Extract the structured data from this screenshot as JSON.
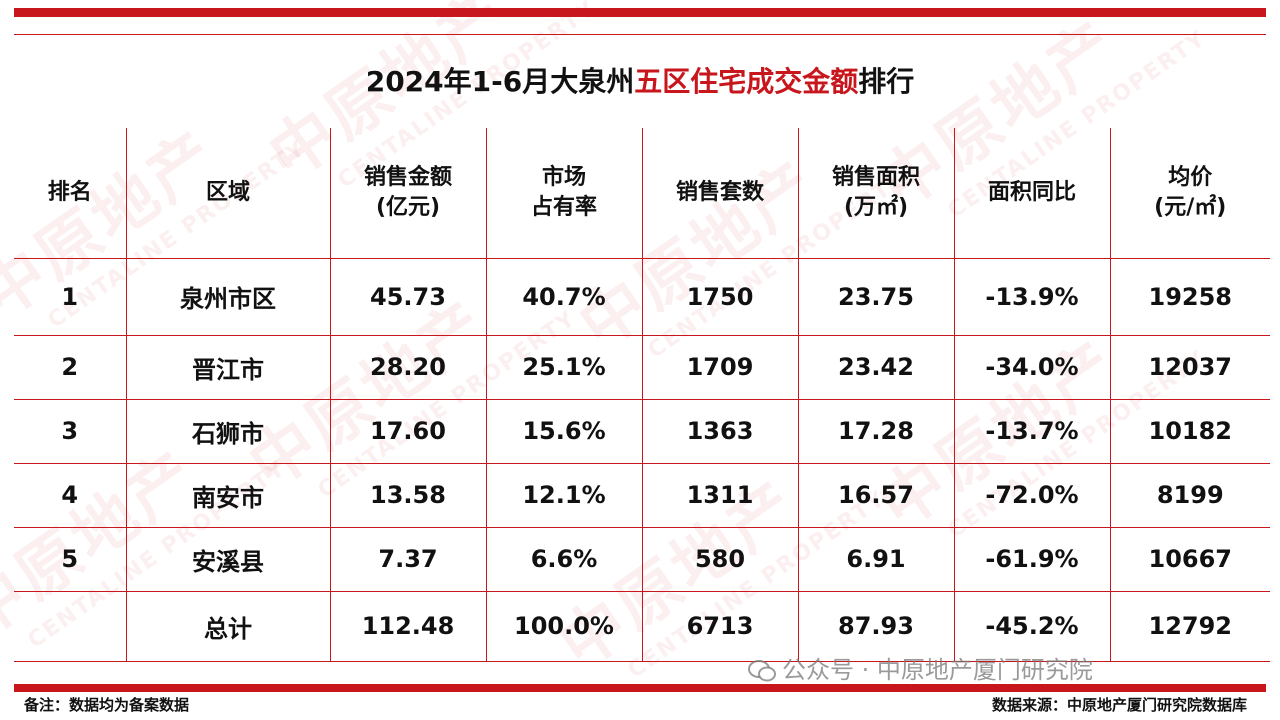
{
  "title": {
    "prefix": "2024年1-6月大泉州",
    "highlight": "五区住宅成交金额",
    "suffix": "排行"
  },
  "watermark": {
    "cn": "中原地产",
    "en": "CENTALINE PROPERTY"
  },
  "table": {
    "headers": [
      {
        "line1": "排名",
        "line2": ""
      },
      {
        "line1": "区域",
        "line2": ""
      },
      {
        "line1": "销售金额",
        "line2": "(亿元)"
      },
      {
        "line1": "市场",
        "line2": "占有率"
      },
      {
        "line1": "销售套数",
        "line2": ""
      },
      {
        "line1": "销售面积",
        "line2": "(万㎡)"
      },
      {
        "line1": "面积同比",
        "line2": ""
      },
      {
        "line1": "均价",
        "line2": "(元/㎡)"
      }
    ],
    "rows": [
      [
        "1",
        "泉州市区",
        "45.73",
        "40.7%",
        "1750",
        "23.75",
        "-13.9%",
        "19258"
      ],
      [
        "2",
        "晋江市",
        "28.20",
        "25.1%",
        "1709",
        "23.42",
        "-34.0%",
        "12037"
      ],
      [
        "3",
        "石狮市",
        "17.60",
        "15.6%",
        "1363",
        "17.28",
        "-13.7%",
        "10182"
      ],
      [
        "4",
        "南安市",
        "13.58",
        "12.1%",
        "1311",
        "16.57",
        "-72.0%",
        "8199"
      ],
      [
        "5",
        "安溪县",
        "7.37",
        "6.6%",
        "580",
        "6.91",
        "-61.9%",
        "10667"
      ],
      [
        "",
        "总计",
        "112.48",
        "100.0%",
        "6713",
        "87.93",
        "-45.2%",
        "12792"
      ]
    ]
  },
  "wechat": "公众号 · 中原地产厦门研究院",
  "footer": {
    "note": "备注：数据均为备案数据",
    "source": "数据来源：中原地产厦门研究院数据库"
  },
  "colors": {
    "accent": "#c8161d"
  }
}
